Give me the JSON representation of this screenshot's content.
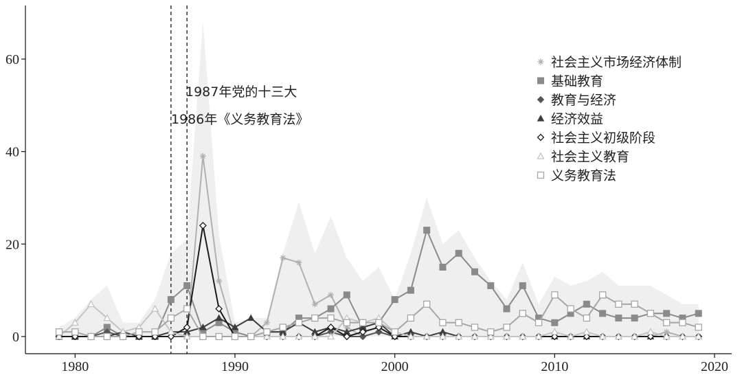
{
  "chart_data": {
    "type": "line",
    "title": "",
    "xlabel": "",
    "ylabel": "",
    "xlim": [
      1977,
      2021
    ],
    "ylim": [
      -3,
      71
    ],
    "xticks": [
      1980,
      1990,
      2000,
      2010,
      2020
    ],
    "yticks": [
      0,
      20,
      40,
      60
    ],
    "grid": false,
    "legend_position": "top-right",
    "x": [
      1979,
      1980,
      1981,
      1982,
      1983,
      1984,
      1985,
      1986,
      1987,
      1988,
      1989,
      1990,
      1991,
      1992,
      1993,
      1994,
      1995,
      1996,
      1997,
      1998,
      1999,
      2000,
      2001,
      2002,
      2003,
      2004,
      2005,
      2006,
      2007,
      2008,
      2009,
      2010,
      2011,
      2012,
      2013,
      2014,
      2015,
      2016,
      2017,
      2018,
      2019
    ],
    "total_area": [
      2,
      4,
      8,
      11,
      3,
      3,
      8,
      18,
      21,
      68,
      22,
      3,
      4,
      4,
      18,
      29,
      18,
      26,
      17,
      12,
      15,
      8,
      18,
      30,
      20,
      23,
      17,
      12,
      8,
      16,
      7,
      13,
      11,
      12,
      14,
      11,
      11,
      11,
      9,
      7,
      7
    ],
    "vlines": [
      1986,
      1987
    ],
    "annotations": [
      "1987年党的十三大",
      "1986年《义务教育法》"
    ],
    "series": [
      {
        "name": "社会主义市场经济体制",
        "marker": "asterisk",
        "color": "#b0b0b0",
        "values": [
          0,
          0,
          0,
          0,
          0,
          0,
          0,
          0,
          0,
          39,
          12,
          0,
          0,
          3,
          17,
          16,
          7,
          9,
          2,
          0,
          1,
          0,
          0,
          0,
          0,
          0,
          0,
          0,
          0,
          0,
          0,
          0,
          0,
          0,
          0,
          0,
          0,
          0,
          1,
          0,
          0
        ]
      },
      {
        "name": "基础教育",
        "marker": "square-filled",
        "color": "#8a8a8a",
        "values": [
          0,
          0,
          0,
          2,
          0,
          0,
          0,
          8,
          11,
          1,
          3,
          1,
          0,
          1,
          1,
          4,
          4,
          6,
          9,
          2,
          3,
          8,
          10,
          23,
          15,
          18,
          14,
          11,
          6,
          11,
          4,
          3,
          5,
          7,
          5,
          4,
          4,
          5,
          5,
          4,
          5
        ]
      },
      {
        "name": "教育与经济",
        "marker": "diamond-filled",
        "color": "#555555",
        "values": [
          0,
          0,
          0,
          1,
          0,
          0,
          0,
          0,
          0,
          0,
          0,
          0,
          0,
          0,
          0,
          0,
          0,
          1,
          0,
          0,
          1,
          0,
          0,
          0,
          0,
          0,
          0,
          0,
          0,
          0,
          0,
          0,
          0,
          0,
          0,
          0,
          0,
          0,
          0,
          0,
          0
        ]
      },
      {
        "name": "经济效益",
        "marker": "triangle-filled",
        "color": "#3d3d3d",
        "values": [
          0,
          0,
          0,
          0,
          1,
          0,
          0,
          1,
          1,
          2,
          4,
          2,
          4,
          1,
          1,
          3,
          1,
          2,
          1,
          2,
          3,
          0,
          1,
          0,
          1,
          0,
          0,
          0,
          0,
          0,
          0,
          0,
          0,
          0,
          0,
          0,
          0,
          0,
          0,
          0,
          0
        ]
      },
      {
        "name": "社会主义初级阶段",
        "marker": "diamond-open",
        "color": "#1a1a1a",
        "values": [
          0,
          0,
          0,
          0,
          0,
          0,
          0,
          0,
          2,
          24,
          6,
          0,
          0,
          0,
          0,
          0,
          0,
          2,
          0,
          1,
          2,
          0,
          0,
          0,
          0,
          0,
          0,
          0,
          0,
          0,
          0,
          0,
          0,
          0,
          0,
          0,
          0,
          0,
          0,
          0,
          0
        ]
      },
      {
        "name": "社会主义教育",
        "marker": "triangle-open",
        "color": "#c4c4c4",
        "values": [
          0,
          3,
          7,
          4,
          1,
          2,
          6,
          1,
          0,
          0,
          0,
          0,
          0,
          0,
          0,
          0,
          0,
          0,
          4,
          3,
          4,
          1,
          0,
          0,
          0,
          0,
          0,
          0,
          0,
          0,
          0,
          1,
          0,
          1,
          0,
          0,
          0,
          1,
          0,
          0,
          0
        ]
      },
      {
        "name": "义务教育法",
        "marker": "square-open",
        "color": "#a6a6a6",
        "values": [
          1,
          1,
          0,
          0,
          0,
          1,
          1,
          4,
          6,
          0,
          0,
          0,
          0,
          1,
          2,
          3,
          4,
          4,
          3,
          3,
          3,
          1,
          4,
          7,
          3,
          3,
          2,
          1,
          2,
          5,
          3,
          9,
          6,
          4,
          9,
          7,
          7,
          5,
          3,
          3,
          2
        ]
      }
    ]
  }
}
